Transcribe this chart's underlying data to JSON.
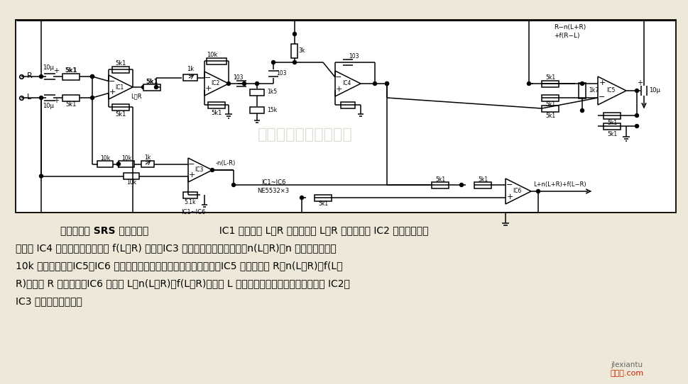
{
  "bg_color": "#ede8d8",
  "circuit_bg": "#ffffff",
  "black": "#000000",
  "gray": "#888888",
  "watermark_color": "#c8c0a8",
  "red_color": "#cc2200",
  "orange_color": "#dd4400",
  "desc_lines": [
    "用运放试作 SRS 效果处理器",
    "  IC1 将输入的 L、R 相减，得到 L－R 信号，通过 IC2 缓冲及增益调",
    "节送入 IC4 进行带通滤波，输出 f(L－R) 信号。IC3 将信号反相相加，得到－n(L＋R)，n 是此级增益，由",
    "10k 电位器调节。IC5、IC6 是两个全加器电路，用于混合各路信号。IC5 输出信号为 R＋n(L＋R)＋f(L－",
    "R)，送到 R 声道放大；IC6 输出为 L＋n(L＋R)＋f(L－R)，送到 L 声道放大。空间感和对比度分别用 IC2、",
    "IC3 外接电位器调节。"
  ],
  "watermark_text": "杭州烀虑科技有限公司",
  "site_text": "jlexiantu",
  "site_cn": "捧线图.com"
}
